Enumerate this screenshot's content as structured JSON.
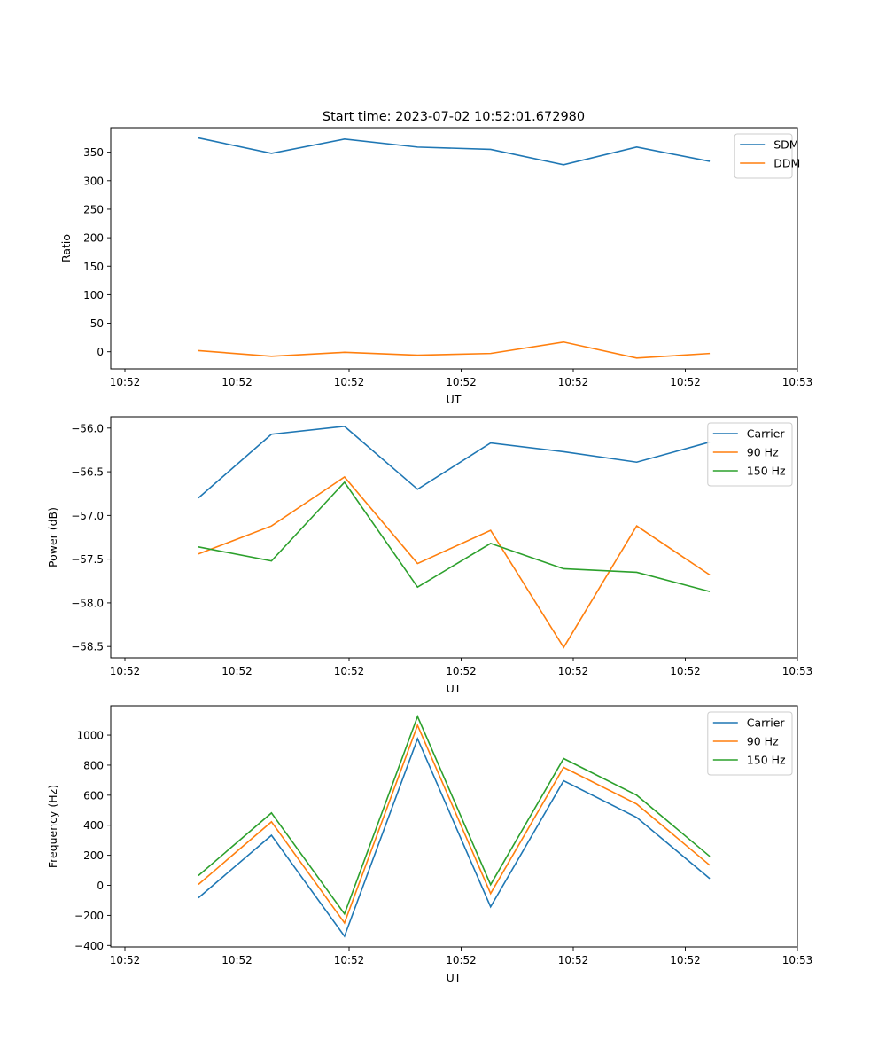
{
  "chart_data": [
    {
      "type": "line",
      "title": "Start time: 2023-07-02 10:52:01.672980",
      "xlabel": "UT",
      "ylabel": "Ratio",
      "xtick_labels": [
        "10:52",
        "10:52",
        "10:52",
        "10:52",
        "10:52",
        "10:52",
        "10:53"
      ],
      "yticks": [
        0,
        50,
        100,
        150,
        200,
        250,
        300,
        350
      ],
      "ylim": [
        -30,
        393
      ],
      "x_index": [
        1,
        2,
        3,
        4,
        5,
        6,
        7,
        8
      ],
      "xlim_index": [
        -0.2,
        9.2
      ],
      "legend_position": "top-right",
      "series": [
        {
          "name": "SDM",
          "color": "#1f77b4",
          "values": [
            375,
            348,
            373,
            359,
            355,
            328,
            359,
            334
          ]
        },
        {
          "name": "DDM",
          "color": "#ff7f0e",
          "values": [
            2,
            -8,
            -1,
            -6,
            -3,
            17,
            -11,
            -3
          ]
        }
      ]
    },
    {
      "type": "line",
      "title": "",
      "xlabel": "UT",
      "ylabel": "Power (dB)",
      "xtick_labels": [
        "10:52",
        "10:52",
        "10:52",
        "10:52",
        "10:52",
        "10:52",
        "10:53"
      ],
      "yticks": [
        -58.5,
        -58.0,
        -57.5,
        -57.0,
        -56.5,
        -56.0
      ],
      "ytick_labels": [
        "−58.5",
        "−58.0",
        "−57.5",
        "−57.0",
        "−56.5",
        "−56.0"
      ],
      "ylim": [
        -58.63,
        -55.87
      ],
      "x_index": [
        1,
        2,
        3,
        4,
        5,
        6,
        7,
        8
      ],
      "xlim_index": [
        -0.2,
        9.2
      ],
      "legend_position": "top-right",
      "series": [
        {
          "name": "Carrier",
          "color": "#1f77b4",
          "values": [
            -56.8,
            -56.07,
            -55.98,
            -56.7,
            -56.17,
            -56.27,
            -56.39,
            -56.16
          ]
        },
        {
          "name": "90 Hz",
          "color": "#ff7f0e",
          "values": [
            -57.44,
            -57.12,
            -56.56,
            -57.55,
            -57.17,
            -58.51,
            -57.12,
            -57.68
          ]
        },
        {
          "name": "150 Hz",
          "color": "#2ca02c",
          "values": [
            -57.36,
            -57.52,
            -56.62,
            -57.82,
            -57.32,
            -57.61,
            -57.65,
            -57.87
          ]
        }
      ]
    },
    {
      "type": "line",
      "title": "",
      "xlabel": "UT",
      "ylabel": "Frequency (Hz)",
      "xtick_labels": [
        "10:52",
        "10:52",
        "10:52",
        "10:52",
        "10:52",
        "10:52",
        "10:53"
      ],
      "yticks": [
        -400,
        -200,
        0,
        200,
        400,
        600,
        800,
        1000
      ],
      "ytick_labels": [
        "−400",
        "−200",
        "0",
        "200",
        "400",
        "600",
        "800",
        "1000"
      ],
      "ylim": [
        -410,
        1195
      ],
      "x_index": [
        1,
        2,
        3,
        4,
        5,
        6,
        7,
        8
      ],
      "xlim_index": [
        -0.2,
        9.2
      ],
      "legend_position": "top-right",
      "series": [
        {
          "name": "Carrier",
          "color": "#1f77b4",
          "values": [
            -83,
            333,
            -339,
            976,
            -143,
            696,
            452,
            45
          ]
        },
        {
          "name": "90 Hz",
          "color": "#ff7f0e",
          "values": [
            6,
            423,
            -250,
            1065,
            -54,
            785,
            541,
            134
          ]
        },
        {
          "name": "150 Hz",
          "color": "#2ca02c",
          "values": [
            65,
            482,
            -190,
            1124,
            5,
            844,
            600,
            193
          ]
        }
      ]
    }
  ]
}
